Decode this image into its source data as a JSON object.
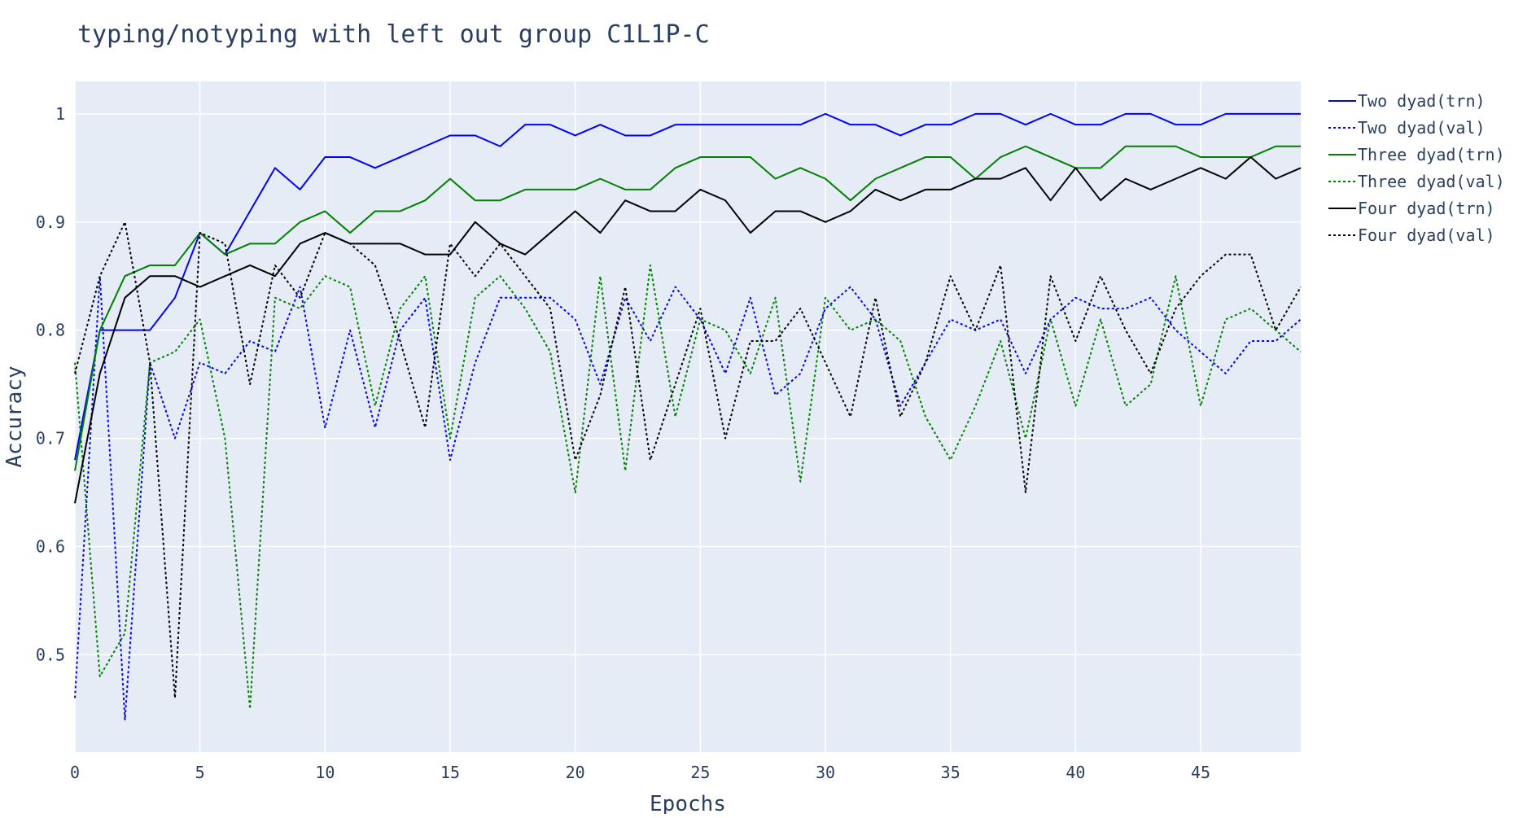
{
  "chart_data": {
    "type": "line",
    "title": "typing/notyping with left out group C1L1P-C",
    "xlabel": "Epochs",
    "ylabel": "Accuracy",
    "xlim": [
      0,
      49
    ],
    "ylim": [
      0.41,
      1.03
    ],
    "x_ticks": [
      0,
      5,
      10,
      15,
      20,
      25,
      30,
      35,
      40,
      45
    ],
    "y_ticks": [
      0.5,
      0.6,
      0.7,
      0.8,
      0.9,
      1
    ],
    "y_tick_labels": [
      "0.5",
      "0.6",
      "0.7",
      "0.8",
      "0.9",
      "1"
    ],
    "grid": true,
    "plot_bg": "#e5ecf6",
    "legend_position": "right",
    "x": [
      0,
      1,
      2,
      3,
      4,
      5,
      6,
      7,
      8,
      9,
      10,
      11,
      12,
      13,
      14,
      15,
      16,
      17,
      18,
      19,
      20,
      21,
      22,
      23,
      24,
      25,
      26,
      27,
      28,
      29,
      30,
      31,
      32,
      33,
      34,
      35,
      36,
      37,
      38,
      39,
      40,
      41,
      42,
      43,
      44,
      45,
      46,
      47,
      48,
      49
    ],
    "series": [
      {
        "name": "Two dyad(trn)",
        "color": "#0000ff",
        "dash": "solid",
        "values": [
          0.68,
          0.8,
          0.8,
          0.8,
          0.83,
          0.89,
          0.87,
          0.91,
          0.95,
          0.93,
          0.96,
          0.96,
          0.95,
          0.96,
          0.97,
          0.98,
          0.98,
          0.97,
          0.99,
          0.99,
          0.98,
          0.99,
          0.98,
          0.98,
          0.99,
          0.99,
          0.99,
          0.99,
          0.99,
          0.99,
          1.0,
          0.99,
          0.99,
          0.98,
          0.99,
          0.99,
          1.0,
          1.0,
          0.99,
          1.0,
          0.99,
          0.99,
          1.0,
          1.0,
          0.99,
          0.99,
          1.0,
          1.0,
          1.0,
          1.0
        ]
      },
      {
        "name": "Two dyad(val)",
        "color": "#0000ff",
        "dash": "dot",
        "values": [
          0.46,
          0.85,
          0.44,
          0.77,
          0.7,
          0.77,
          0.76,
          0.79,
          0.78,
          0.84,
          0.71,
          0.8,
          0.71,
          0.8,
          0.83,
          0.68,
          0.77,
          0.83,
          0.83,
          0.83,
          0.81,
          0.75,
          0.83,
          0.79,
          0.84,
          0.81,
          0.76,
          0.83,
          0.74,
          0.76,
          0.82,
          0.84,
          0.81,
          0.73,
          0.77,
          0.81,
          0.8,
          0.81,
          0.76,
          0.81,
          0.83,
          0.82,
          0.82,
          0.83,
          0.8,
          0.78,
          0.76,
          0.79,
          0.79,
          0.81
        ]
      },
      {
        "name": "Three dyad(trn)",
        "color": "#008000",
        "dash": "solid",
        "values": [
          0.67,
          0.8,
          0.85,
          0.86,
          0.86,
          0.89,
          0.87,
          0.88,
          0.88,
          0.9,
          0.91,
          0.89,
          0.91,
          0.91,
          0.92,
          0.94,
          0.92,
          0.92,
          0.93,
          0.93,
          0.93,
          0.94,
          0.93,
          0.93,
          0.95,
          0.96,
          0.96,
          0.96,
          0.94,
          0.95,
          0.94,
          0.92,
          0.94,
          0.95,
          0.96,
          0.96,
          0.94,
          0.96,
          0.97,
          0.96,
          0.95,
          0.95,
          0.97,
          0.97,
          0.97,
          0.96,
          0.96,
          0.96,
          0.97,
          0.97
        ]
      },
      {
        "name": "Three dyad(val)",
        "color": "#008000",
        "dash": "dot",
        "values": [
          0.77,
          0.48,
          0.52,
          0.77,
          0.78,
          0.81,
          0.7,
          0.45,
          0.83,
          0.82,
          0.85,
          0.84,
          0.73,
          0.82,
          0.85,
          0.7,
          0.83,
          0.85,
          0.82,
          0.78,
          0.65,
          0.85,
          0.67,
          0.86,
          0.72,
          0.81,
          0.8,
          0.76,
          0.83,
          0.66,
          0.83,
          0.8,
          0.81,
          0.79,
          0.72,
          0.68,
          0.73,
          0.79,
          0.7,
          0.81,
          0.73,
          0.81,
          0.73,
          0.75,
          0.85,
          0.73,
          0.81,
          0.82,
          0.8,
          0.78
        ]
      },
      {
        "name": "Four dyad(trn)",
        "color": "#000000",
        "dash": "solid",
        "values": [
          0.64,
          0.76,
          0.83,
          0.85,
          0.85,
          0.84,
          0.85,
          0.86,
          0.85,
          0.88,
          0.89,
          0.88,
          0.88,
          0.88,
          0.87,
          0.87,
          0.9,
          0.88,
          0.87,
          0.89,
          0.91,
          0.89,
          0.92,
          0.91,
          0.91,
          0.93,
          0.92,
          0.89,
          0.91,
          0.91,
          0.9,
          0.91,
          0.93,
          0.92,
          0.93,
          0.93,
          0.94,
          0.94,
          0.95,
          0.92,
          0.95,
          0.92,
          0.94,
          0.93,
          0.94,
          0.95,
          0.94,
          0.96,
          0.94,
          0.95
        ]
      },
      {
        "name": "Four dyad(val)",
        "color": "#000000",
        "dash": "dot",
        "values": [
          0.76,
          0.85,
          0.9,
          0.77,
          0.46,
          0.89,
          0.88,
          0.75,
          0.86,
          0.83,
          0.89,
          0.88,
          0.86,
          0.79,
          0.71,
          0.88,
          0.85,
          0.88,
          0.85,
          0.82,
          0.68,
          0.74,
          0.84,
          0.68,
          0.75,
          0.82,
          0.7,
          0.79,
          0.79,
          0.82,
          0.77,
          0.72,
          0.83,
          0.72,
          0.77,
          0.85,
          0.8,
          0.86,
          0.65,
          0.85,
          0.79,
          0.85,
          0.8,
          0.76,
          0.82,
          0.85,
          0.87,
          0.87,
          0.8,
          0.84
        ]
      }
    ]
  }
}
